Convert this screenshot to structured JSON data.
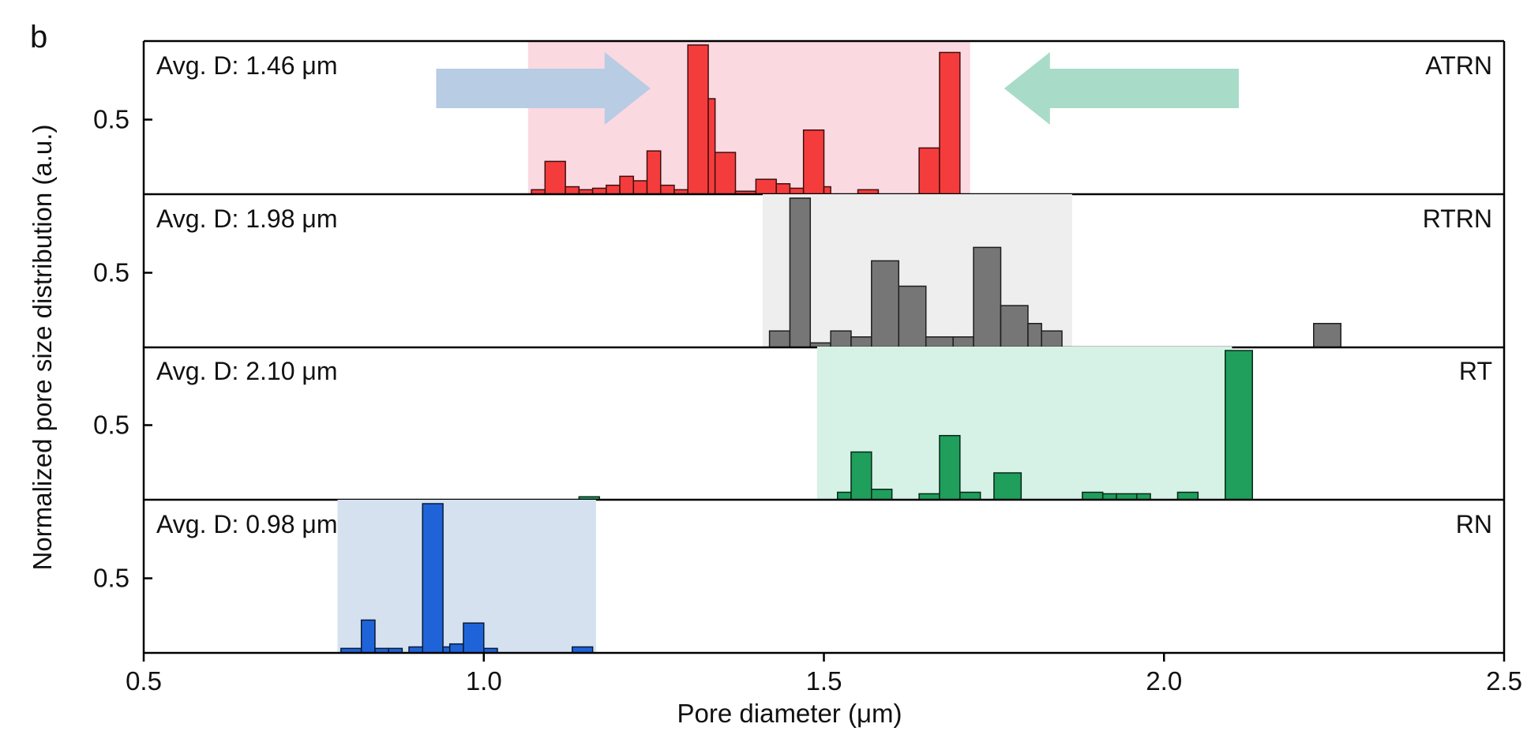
{
  "figure_label": "b",
  "chart_data": {
    "type": "bar",
    "panel_label": "b",
    "xlabel": "Pore diameter (μm)",
    "ylabel": "Normalized pore size distribution  (a.u.)",
    "xlim": [
      0.5,
      2.5
    ],
    "ylim": [
      0,
      1
    ],
    "xticks": [
      0.5,
      1.0,
      1.5,
      2.0,
      2.5
    ],
    "xtick_labels": [
      "0.5",
      "1.0",
      "1.5",
      "2.0",
      "2.5"
    ],
    "ytick_label": "0.5",
    "ytick_value": 0.5,
    "grid": false,
    "legend": "none",
    "panels": [
      {
        "name": "ATRN",
        "avg_label": "Avg. D: 1.46 μm",
        "color": "#F53C3C",
        "band_color": "#FBD9E0",
        "band": [
          1.065,
          1.715
        ],
        "arrows": [
          {
            "from": 0.93,
            "to": 1.245,
            "color": "#B8CCE4"
          },
          {
            "from": 2.11,
            "to": 1.765,
            "color": "#A8DCC8"
          }
        ],
        "bars": [
          [
            1.07,
            1.09,
            0.03
          ],
          [
            1.09,
            1.12,
            0.22
          ],
          [
            1.12,
            1.14,
            0.05
          ],
          [
            1.14,
            1.16,
            0.03
          ],
          [
            1.16,
            1.18,
            0.04
          ],
          [
            1.18,
            1.2,
            0.06
          ],
          [
            1.2,
            1.22,
            0.12
          ],
          [
            1.22,
            1.24,
            0.09
          ],
          [
            1.24,
            1.26,
            0.29
          ],
          [
            1.26,
            1.28,
            0.06
          ],
          [
            1.28,
            1.3,
            0.03
          ],
          [
            1.3,
            1.33,
            1.0
          ],
          [
            1.33,
            1.34,
            0.64
          ],
          [
            1.34,
            1.37,
            0.28
          ],
          [
            1.37,
            1.4,
            0.02
          ],
          [
            1.4,
            1.43,
            0.1
          ],
          [
            1.43,
            1.45,
            0.07
          ],
          [
            1.45,
            1.47,
            0.04
          ],
          [
            1.47,
            1.5,
            0.43
          ],
          [
            1.5,
            1.51,
            0.05
          ],
          [
            1.55,
            1.58,
            0.03
          ],
          [
            1.64,
            1.67,
            0.31
          ],
          [
            1.67,
            1.7,
            0.95
          ]
        ]
      },
      {
        "name": "RTRN",
        "avg_label": "Avg. D: 1.98 μm",
        "color": "#767676",
        "band_color": "#EEEEEE",
        "band": [
          1.41,
          1.865
        ],
        "bars": [
          [
            1.42,
            1.45,
            0.11
          ],
          [
            1.45,
            1.48,
            1.0
          ],
          [
            1.48,
            1.51,
            0.03
          ],
          [
            1.51,
            1.54,
            0.11
          ],
          [
            1.54,
            1.57,
            0.07
          ],
          [
            1.57,
            1.61,
            0.58
          ],
          [
            1.61,
            1.64,
            0.04
          ],
          [
            1.61,
            1.65,
            0.41
          ],
          [
            1.65,
            1.69,
            0.07
          ],
          [
            1.69,
            1.72,
            0.07
          ],
          [
            1.72,
            1.76,
            0.67
          ],
          [
            1.76,
            1.8,
            0.28
          ],
          [
            1.8,
            1.82,
            0.16
          ],
          [
            1.82,
            1.85,
            0.11
          ],
          [
            2.22,
            2.26,
            0.16
          ]
        ]
      },
      {
        "name": "RT",
        "avg_label": "Avg. D: 2.10 μm",
        "color": "#1F9E5C",
        "band_color": "#D6F1E6",
        "band": [
          1.49,
          2.1
        ],
        "bars": [
          [
            1.52,
            1.54,
            0.05
          ],
          [
            1.54,
            1.57,
            0.32
          ],
          [
            1.57,
            1.6,
            0.07
          ],
          [
            1.64,
            1.67,
            0.04
          ],
          [
            1.67,
            1.7,
            0.43
          ],
          [
            1.7,
            1.73,
            0.05
          ],
          [
            1.75,
            1.79,
            0.18
          ],
          [
            1.88,
            1.91,
            0.05
          ],
          [
            1.91,
            1.93,
            0.04
          ],
          [
            1.93,
            1.96,
            0.04
          ],
          [
            1.96,
            1.98,
            0.04
          ],
          [
            2.02,
            2.05,
            0.05
          ],
          [
            2.09,
            2.13,
            1.0
          ],
          [
            1.14,
            1.17,
            0.02
          ]
        ]
      },
      {
        "name": "RN",
        "avg_label": "Avg. D: 0.98 μm",
        "color": "#1F63D8",
        "band_color": "#D5E1EF",
        "band": [
          0.785,
          1.165
        ],
        "bars": [
          [
            0.79,
            0.82,
            0.03
          ],
          [
            0.82,
            0.84,
            0.22
          ],
          [
            0.84,
            0.86,
            0.03
          ],
          [
            0.86,
            0.88,
            0.03
          ],
          [
            0.89,
            0.91,
            0.04
          ],
          [
            0.91,
            0.94,
            1.0
          ],
          [
            0.94,
            0.95,
            0.04
          ],
          [
            0.95,
            0.97,
            0.06
          ],
          [
            0.97,
            1.0,
            0.2
          ],
          [
            1.0,
            1.02,
            0.03
          ],
          [
            1.13,
            1.16,
            0.04
          ]
        ]
      }
    ]
  }
}
